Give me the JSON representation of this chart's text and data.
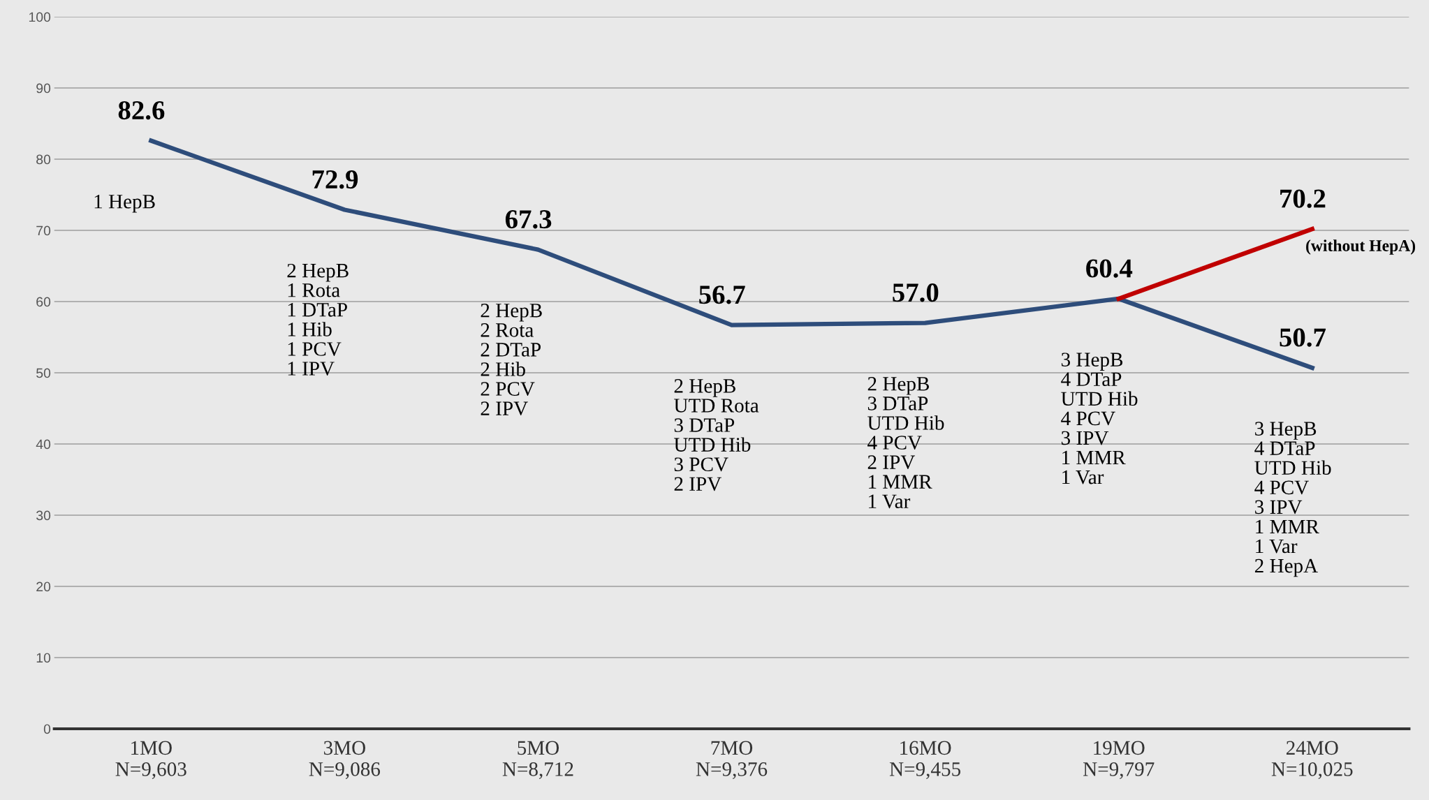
{
  "chart_data": {
    "type": "line",
    "categories": [
      "1MO\nN=9,603",
      "3MO\nN=9,086",
      "5MO\nN=8,712",
      "7MO\nN=9,376",
      "16MO\nN=9,455",
      "19MO\nN=9,797",
      "24MO\nN=10,025"
    ],
    "series": [
      {
        "color": "#2e4d7b",
        "values": [
          82.6,
          72.9,
          67.3,
          56.7,
          57.0,
          60.4,
          50.7
        ],
        "value_labels": [
          "82.6",
          "72.9",
          "67.3",
          "56.7",
          "57.0",
          "60.4",
          "50.7"
        ]
      },
      {
        "color": "#c00000",
        "values": [
          null,
          null,
          null,
          null,
          null,
          60.4,
          70.2
        ],
        "value_labels": [
          null,
          null,
          null,
          null,
          null,
          null,
          "70.2"
        ]
      }
    ],
    "ylim": [
      0,
      100
    ],
    "yticks": [
      0,
      10,
      20,
      30,
      40,
      50,
      60,
      70,
      80,
      90,
      100
    ],
    "grid": "y",
    "marker": "none",
    "line_style": "solid",
    "annotations": [
      "1 HepB",
      "2 HepB\n1 Rota\n1 DTaP\n1 Hib\n1 PCV\n1 IPV",
      "2 HepB\n2 Rota\n2 DTaP\n2 Hib\n2 PCV\n2 IPV",
      "2 HepB\nUTD Rota\n3 DTaP\nUTD Hib\n3 PCV\n2 IPV",
      "2 HepB\n3 DTaP\nUTD Hib\n4 PCV\n2 IPV\n1 MMR\n1 Var",
      "3 HepB\n4 DTaP\nUTD Hib\n4 PCV\n3 IPV\n1 MMR\n1 Var",
      "3 HepB\n4 DTaP\nUTD Hib\n4 PCV\n3 IPV\n1 MMR\n1 Var\n2 HepA",
      "(without HepA)"
    ]
  }
}
